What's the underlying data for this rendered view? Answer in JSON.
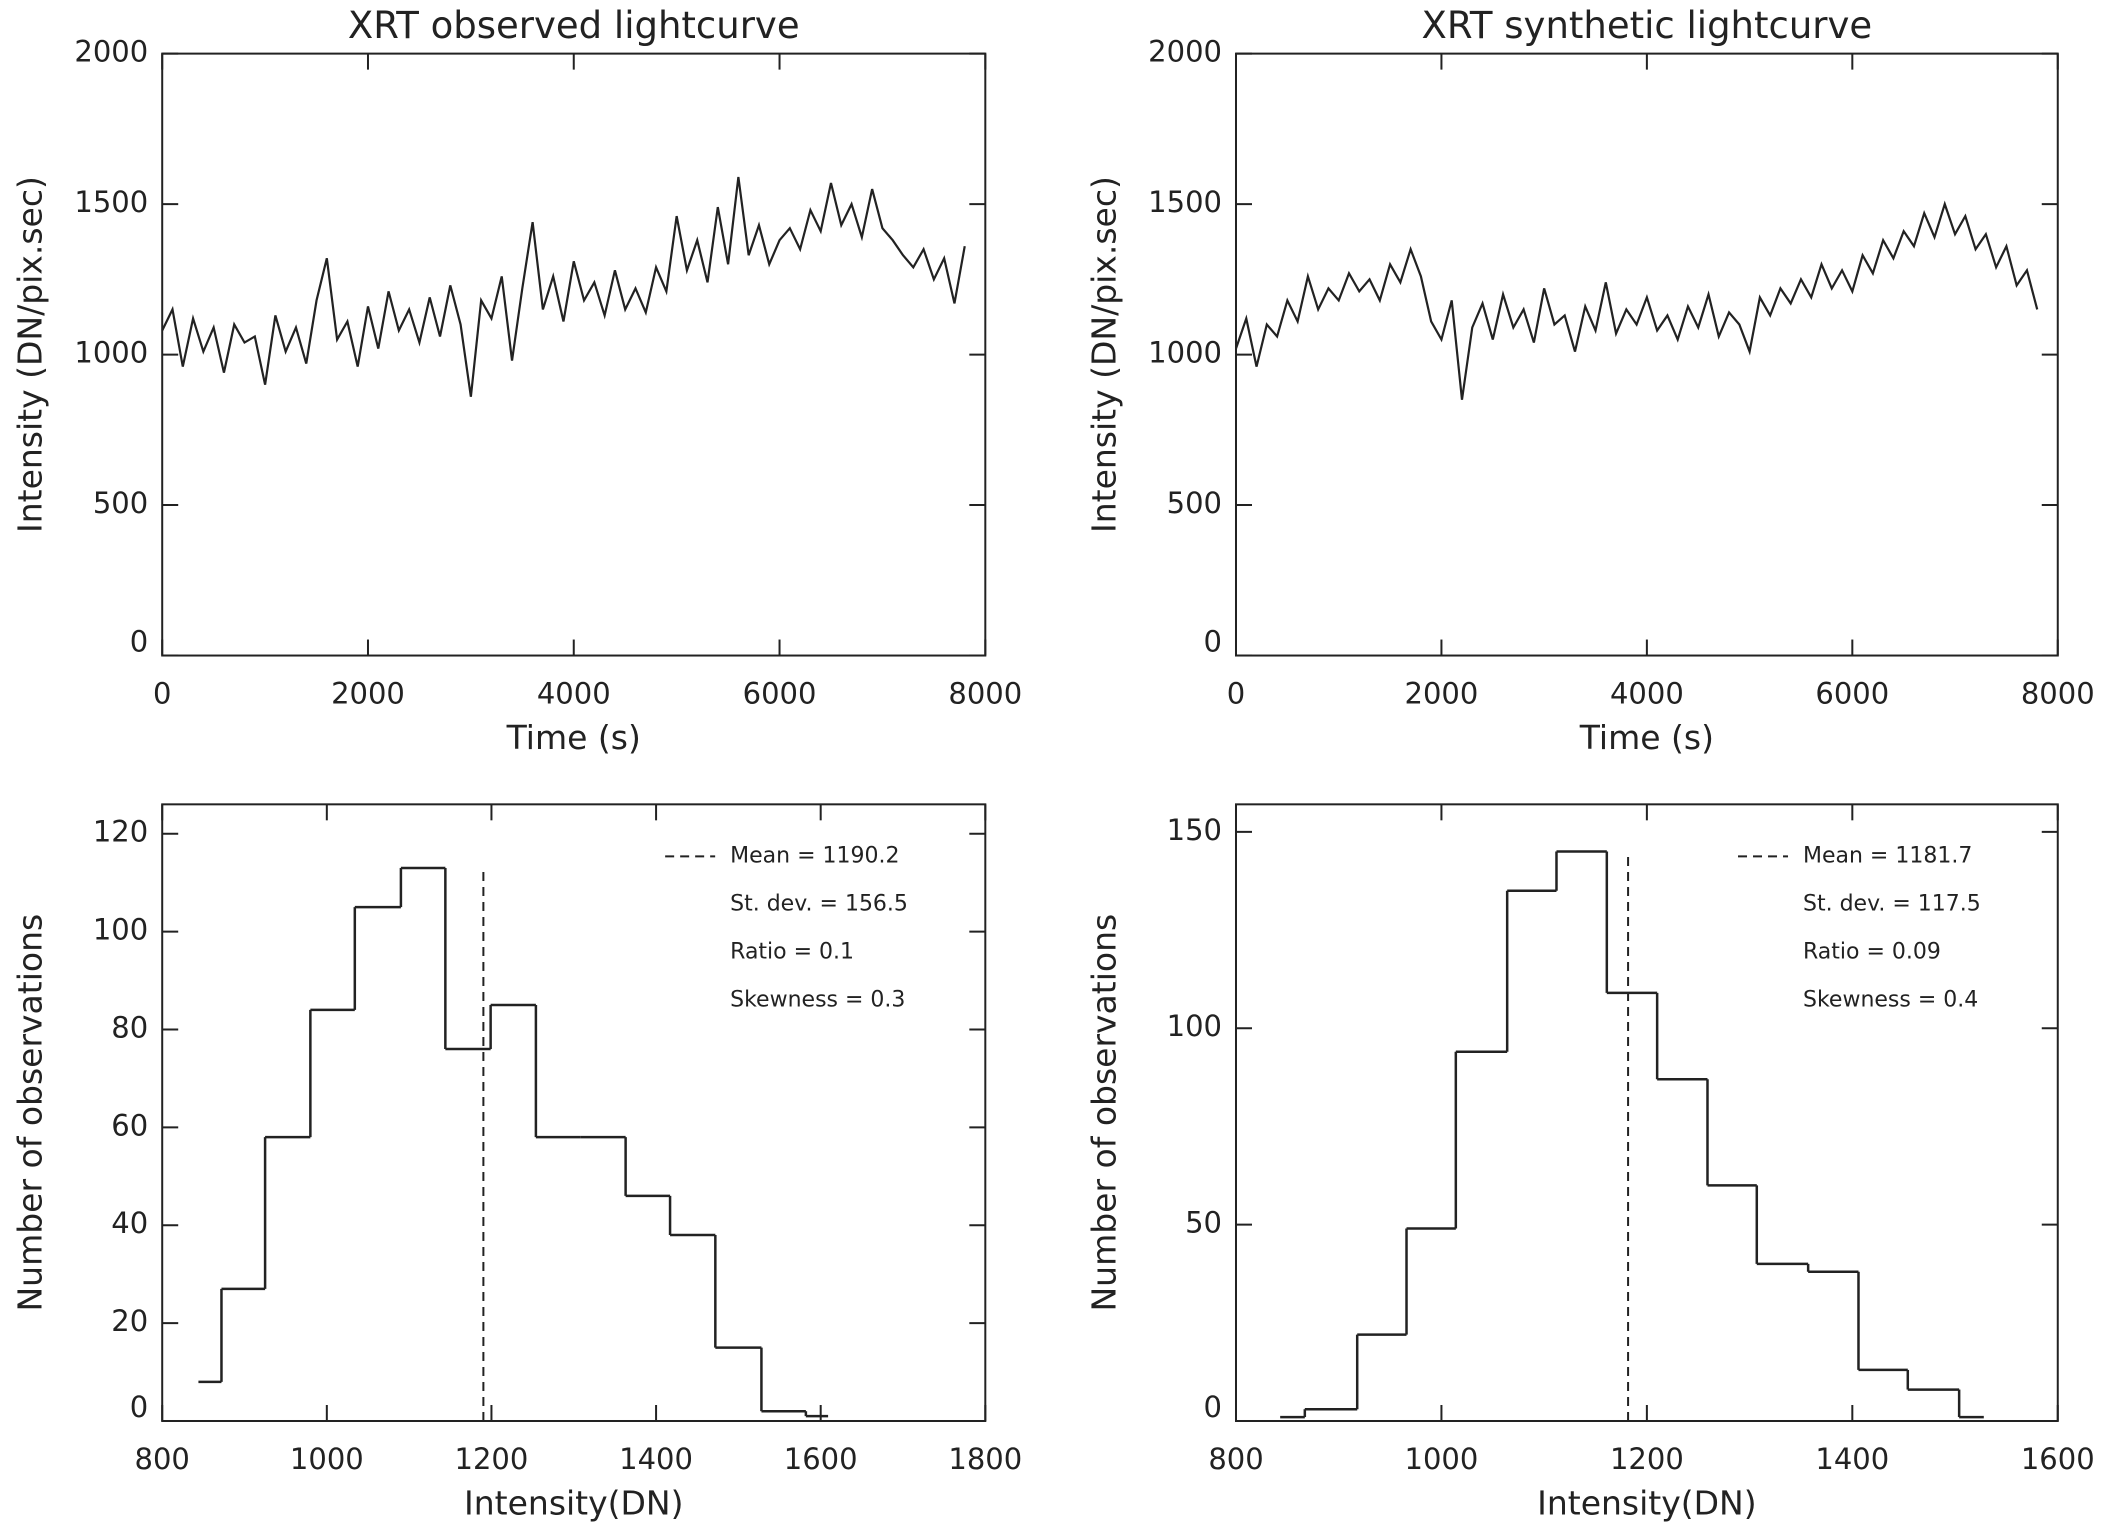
{
  "chart_data": [
    {
      "type": "line",
      "title": "XRT observed lightcurve",
      "xlabel": "Time (s)",
      "ylabel": "Intensity (DN/pix.sec)",
      "color": "#222222",
      "xlim": [
        0,
        8000
      ],
      "xticks": [
        0,
        2000,
        4000,
        6000,
        8000
      ],
      "ylim": [
        0,
        2000
      ],
      "yticks": [
        0,
        500,
        1000,
        1500,
        2000
      ],
      "x": [
        0,
        100,
        200,
        300,
        400,
        500,
        600,
        700,
        800,
        900,
        1000,
        1100,
        1200,
        1300,
        1400,
        1500,
        1600,
        1700,
        1800,
        1900,
        2000,
        2100,
        2200,
        2300,
        2400,
        2500,
        2600,
        2700,
        2800,
        2900,
        3000,
        3100,
        3200,
        3300,
        3400,
        3500,
        3600,
        3700,
        3800,
        3900,
        4000,
        4100,
        4200,
        4300,
        4400,
        4500,
        4600,
        4700,
        4800,
        4900,
        5000,
        5100,
        5200,
        5300,
        5400,
        5500,
        5600,
        5700,
        5800,
        5900,
        6000,
        6100,
        6200,
        6300,
        6400,
        6500,
        6600,
        6700,
        6800,
        6900,
        7000,
        7100,
        7200,
        7300,
        7400,
        7500,
        7600,
        7700,
        7800
      ],
      "values": [
        1080,
        1150,
        960,
        1120,
        1010,
        1090,
        940,
        1100,
        1040,
        1060,
        900,
        1130,
        1010,
        1090,
        970,
        1180,
        1320,
        1050,
        1110,
        960,
        1160,
        1020,
        1210,
        1080,
        1150,
        1040,
        1190,
        1060,
        1230,
        1100,
        860,
        1180,
        1120,
        1260,
        980,
        1220,
        1440,
        1150,
        1260,
        1110,
        1310,
        1180,
        1240,
        1130,
        1280,
        1150,
        1220,
        1140,
        1290,
        1210,
        1460,
        1280,
        1380,
        1240,
        1490,
        1300,
        1590,
        1330,
        1430,
        1300,
        1380,
        1420,
        1350,
        1480,
        1410,
        1570,
        1430,
        1500,
        1390,
        1550,
        1420,
        1380,
        1330,
        1290,
        1350,
        1250,
        1320,
        1170,
        1360
      ]
    },
    {
      "type": "line",
      "title": "XRT synthetic lightcurve",
      "xlabel": "Time (s)",
      "ylabel": "Intensity (DN/pix.sec)",
      "color": "#222222",
      "xlim": [
        0,
        8000
      ],
      "xticks": [
        0,
        2000,
        4000,
        6000,
        8000
      ],
      "ylim": [
        0,
        2000
      ],
      "yticks": [
        0,
        500,
        1000,
        1500,
        2000
      ],
      "x": [
        0,
        100,
        200,
        300,
        400,
        500,
        600,
        700,
        800,
        900,
        1000,
        1100,
        1200,
        1300,
        1400,
        1500,
        1600,
        1700,
        1800,
        1900,
        2000,
        2100,
        2200,
        2300,
        2400,
        2500,
        2600,
        2700,
        2800,
        2900,
        3000,
        3100,
        3200,
        3300,
        3400,
        3500,
        3600,
        3700,
        3800,
        3900,
        4000,
        4100,
        4200,
        4300,
        4400,
        4500,
        4600,
        4700,
        4800,
        4900,
        5000,
        5100,
        5200,
        5300,
        5400,
        5500,
        5600,
        5700,
        5800,
        5900,
        6000,
        6100,
        6200,
        6300,
        6400,
        6500,
        6600,
        6700,
        6800,
        6900,
        7000,
        7100,
        7200,
        7300,
        7400,
        7500,
        7600,
        7700,
        7800
      ],
      "values": [
        1020,
        1120,
        960,
        1100,
        1060,
        1180,
        1110,
        1260,
        1150,
        1220,
        1180,
        1270,
        1210,
        1250,
        1180,
        1300,
        1240,
        1350,
        1260,
        1110,
        1050,
        1180,
        850,
        1090,
        1170,
        1050,
        1200,
        1090,
        1150,
        1040,
        1220,
        1100,
        1130,
        1010,
        1160,
        1080,
        1240,
        1070,
        1150,
        1100,
        1190,
        1080,
        1130,
        1050,
        1160,
        1090,
        1200,
        1060,
        1140,
        1100,
        1010,
        1190,
        1130,
        1220,
        1170,
        1250,
        1190,
        1300,
        1220,
        1280,
        1210,
        1330,
        1270,
        1380,
        1320,
        1410,
        1360,
        1470,
        1390,
        1500,
        1400,
        1460,
        1350,
        1400,
        1290,
        1360,
        1230,
        1280,
        1150
      ]
    },
    {
      "type": "histogram",
      "xlabel": "Intensity(DN)",
      "ylabel": "Number of observations",
      "color": "#222222",
      "xlim": [
        800,
        1800
      ],
      "xticks": [
        800,
        1000,
        1200,
        1400,
        1600,
        1800
      ],
      "ylim": [
        0,
        126
      ],
      "yticks": [
        0,
        20,
        40,
        60,
        80,
        100,
        120
      ],
      "bins": [
        844,
        872,
        925,
        980,
        1034,
        1090,
        1144,
        1199,
        1254,
        1308,
        1363,
        1417,
        1472,
        1528,
        1582,
        1609
      ],
      "values": [
        8,
        27,
        58,
        84,
        105,
        113,
        76,
        85,
        58,
        58,
        46,
        38,
        15,
        2,
        1
      ],
      "mean_line": 1190.2,
      "stats": [
        "Mean = 1190.2",
        "St. dev. = 156.5",
        "Ratio =  0.1",
        "Skewness =  0.3"
      ]
    },
    {
      "type": "histogram",
      "xlabel": "Intensity(DN)",
      "ylabel": "Number of observations",
      "color": "#222222",
      "xlim": [
        800,
        1600
      ],
      "xticks": [
        800,
        1000,
        1200,
        1400,
        1600
      ],
      "ylim": [
        0,
        157
      ],
      "yticks": [
        0,
        50,
        100,
        150
      ],
      "bins": [
        843,
        867,
        918,
        966,
        1014,
        1064,
        1112,
        1161,
        1210,
        1259,
        1307,
        1357,
        1406,
        1454,
        1504,
        1528
      ],
      "values": [
        1,
        3,
        22,
        49,
        94,
        135,
        145,
        109,
        87,
        60,
        40,
        38,
        13,
        8,
        1
      ],
      "mean_line": 1181.7,
      "stats": [
        "Mean = 1181.7",
        "St. dev. = 117.5",
        "Ratio = 0.09",
        "Skewness =  0.4"
      ]
    }
  ]
}
